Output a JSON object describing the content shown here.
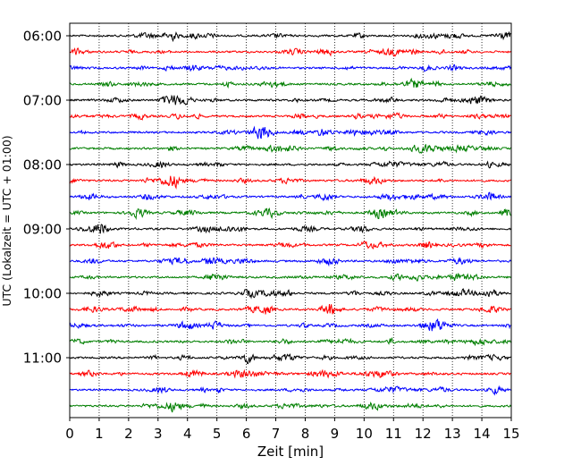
{
  "chart_data": {
    "type": "line",
    "subtype": "helicorder",
    "xlabel": "Zeit  [min]",
    "ylabel": "UTC (Lokalzeit = UTC + 01:00)",
    "xlim": [
      0,
      15
    ],
    "xticks": [
      0,
      1,
      2,
      3,
      4,
      5,
      6,
      7,
      8,
      9,
      10,
      11,
      12,
      13,
      14,
      15
    ],
    "xtick_labels": [
      "0",
      "1",
      "2",
      "3",
      "4",
      "5",
      "6",
      "7",
      "8",
      "9",
      "10",
      "11",
      "12",
      "13",
      "14",
      "15"
    ],
    "ytick_labels": [
      "06:00",
      "07:00",
      "08:00",
      "09:00",
      "10:00",
      "11:00"
    ],
    "ytick_rows": [
      0,
      4,
      8,
      12,
      16,
      20
    ],
    "x_grid": "dotted",
    "trace_minutes": 15,
    "trace_count": 24,
    "trace_colors": [
      "#000000",
      "#ff0000",
      "#0000ff",
      "#007f00"
    ],
    "series": [
      {
        "start": "06:00",
        "color": "#000000"
      },
      {
        "start": "06:15",
        "color": "#ff0000"
      },
      {
        "start": "06:30",
        "color": "#0000ff"
      },
      {
        "start": "06:45",
        "color": "#007f00"
      },
      {
        "start": "07:00",
        "color": "#000000"
      },
      {
        "start": "07:15",
        "color": "#ff0000"
      },
      {
        "start": "07:30",
        "color": "#0000ff"
      },
      {
        "start": "07:45",
        "color": "#007f00"
      },
      {
        "start": "08:00",
        "color": "#000000"
      },
      {
        "start": "08:15",
        "color": "#ff0000"
      },
      {
        "start": "08:30",
        "color": "#0000ff"
      },
      {
        "start": "08:45",
        "color": "#007f00"
      },
      {
        "start": "09:00",
        "color": "#000000"
      },
      {
        "start": "09:15",
        "color": "#ff0000"
      },
      {
        "start": "09:30",
        "color": "#0000ff"
      },
      {
        "start": "09:45",
        "color": "#007f00"
      },
      {
        "start": "10:00",
        "color": "#000000"
      },
      {
        "start": "10:15",
        "color": "#ff0000"
      },
      {
        "start": "10:30",
        "color": "#0000ff"
      },
      {
        "start": "10:45",
        "color": "#007f00"
      },
      {
        "start": "11:00",
        "color": "#000000"
      },
      {
        "start": "11:15",
        "color": "#ff0000"
      },
      {
        "start": "11:30",
        "color": "#0000ff"
      },
      {
        "start": "11:45",
        "color": "#007f00"
      }
    ]
  }
}
